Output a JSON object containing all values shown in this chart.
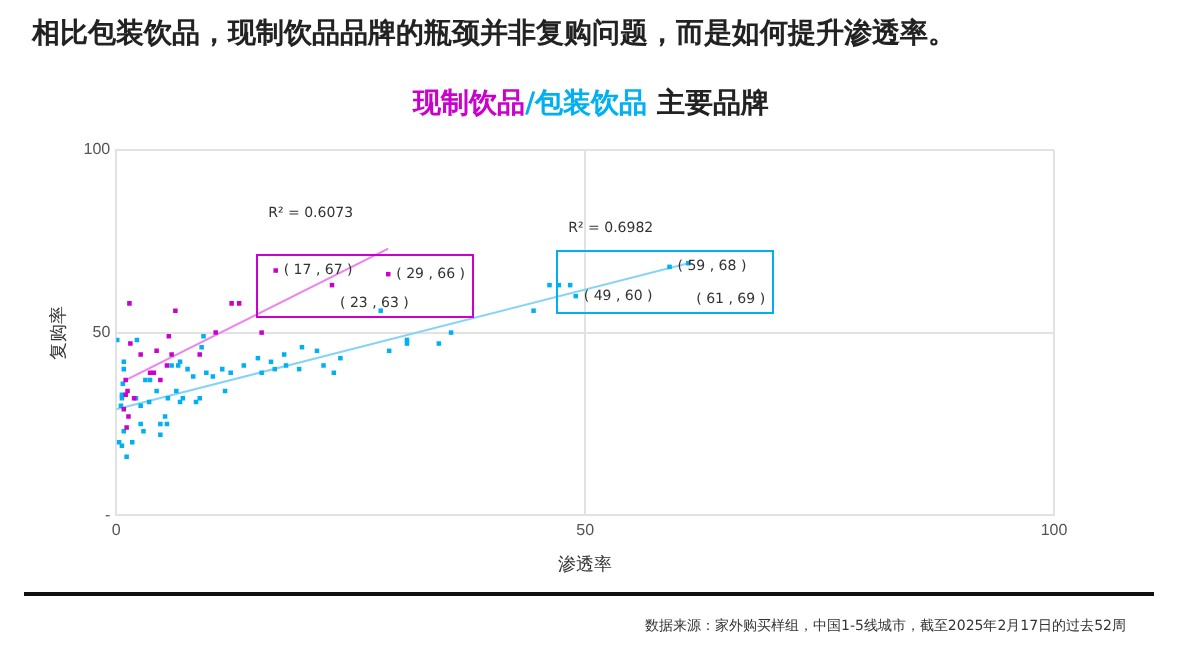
{
  "chart_data": {
    "type": "scatter",
    "title": "相比包装饮品，现制饮品品牌的瓶颈并非复购问题，而是如何提升渗透率。",
    "subtitle": "现制饮品/包装饮品 主要品牌",
    "xlabel": "渗透率",
    "ylabel": "复购率",
    "xlim": [
      0,
      100
    ],
    "xticks": [
      0,
      50,
      100
    ],
    "ylim": [
      0,
      100
    ],
    "yticks": [
      {
        "value": 0,
        "label": "-"
      },
      50,
      100
    ],
    "grid": true,
    "legend": false,
    "marker": "square",
    "series": [
      {
        "color": "#cc00cc",
        "x": [
          1.4,
          1.5,
          6.3,
          12.3,
          13.1,
          10.6,
          5.6,
          2.6,
          4.3,
          8.9,
          15.5,
          17,
          23,
          29,
          1.0,
          1.2,
          1.0,
          1.9,
          1.3,
          1.1,
          4,
          4.7,
          5.4,
          3.6,
          5.9,
          0.8
        ],
        "values": [
          58,
          47,
          56,
          58,
          58,
          50,
          49,
          44,
          45,
          44,
          50,
          67,
          63,
          66,
          37,
          34,
          33,
          32,
          27,
          24,
          39,
          37,
          41,
          39,
          44,
          29
        ],
        "value_labels": [
          null,
          null,
          null,
          null,
          null,
          null,
          null,
          null,
          null,
          null,
          null,
          "( 17 , 67 )",
          "( 23 , 63 )",
          "( 29 , 66 )",
          null,
          null,
          null,
          null,
          null,
          null,
          null,
          null,
          null,
          null,
          null,
          null
        ]
      },
      {
        "color": "#00b0f0",
        "x": [
          0.1,
          2.2,
          0.8,
          0.8,
          0.7,
          0.6,
          0.6,
          0.5,
          0.3,
          0.6,
          1.1,
          0.8,
          1.7,
          2.6,
          2.9,
          2.6,
          2.1,
          3.5,
          4.3,
          3.1,
          3.6,
          4.7,
          5.2,
          4.7,
          5.4,
          5.5,
          6.4,
          6.8,
          7.1,
          6.6,
          6.8,
          5.9,
          7.6,
          8.2,
          8.5,
          8.9,
          9.6,
          9.1,
          9.3,
          10.3,
          11.3,
          11.6,
          12.2,
          13.6,
          15.1,
          15.5,
          16.5,
          16.9,
          17.9,
          18.1,
          19.8,
          19.5,
          21.4,
          22.1,
          23.2,
          23.9,
          28.2,
          29.1,
          31,
          31,
          34.4,
          35.7,
          44.5,
          46.2,
          47.2,
          48.4,
          49,
          59,
          61
        ],
        "values": [
          48,
          48,
          42,
          40,
          36,
          33,
          32,
          30,
          20,
          19,
          16,
          23,
          20,
          25,
          23,
          30,
          32,
          31,
          34,
          37,
          37,
          25,
          27,
          22,
          25,
          32,
          34,
          31,
          32,
          41,
          42,
          41,
          40,
          38,
          31,
          32,
          39,
          46,
          49,
          38,
          40,
          34,
          39,
          41,
          43,
          39,
          42,
          40,
          44,
          41,
          46,
          40,
          45,
          41,
          39,
          43,
          56,
          45,
          48,
          47,
          47,
          50,
          56,
          63,
          63,
          63,
          60,
          68,
          69
        ],
        "value_labels": [
          null,
          null,
          null,
          null,
          null,
          null,
          null,
          null,
          null,
          null,
          null,
          null,
          null,
          null,
          null,
          null,
          null,
          null,
          null,
          null,
          null,
          null,
          null,
          null,
          null,
          null,
          null,
          null,
          null,
          null,
          null,
          null,
          null,
          null,
          null,
          null,
          null,
          null,
          null,
          null,
          null,
          null,
          null,
          null,
          null,
          null,
          null,
          null,
          null,
          null,
          null,
          null,
          null,
          null,
          null,
          null,
          null,
          null,
          null,
          null,
          null,
          null,
          null,
          null,
          null,
          null,
          "( 49 , 60 )",
          "( 59 , 68 )",
          "( 61 , 69 )"
        ]
      },
      {
        "type": "line",
        "name": "R² = 0.6073",
        "color": "#ee82ee",
        "marker": "none",
        "x": [
          1,
          29
        ],
        "values": [
          37,
          73
        ]
      },
      {
        "type": "line",
        "name": "R² = 0.6982",
        "color": "#87d3f8",
        "marker": "none",
        "x": [
          0,
          61
        ],
        "values": [
          29,
          69
        ]
      }
    ],
    "annotations": [
      "数据来源：家外购买样组，中国1-5线城市，截至2025年2月17日的过去52周"
    ]
  }
}
